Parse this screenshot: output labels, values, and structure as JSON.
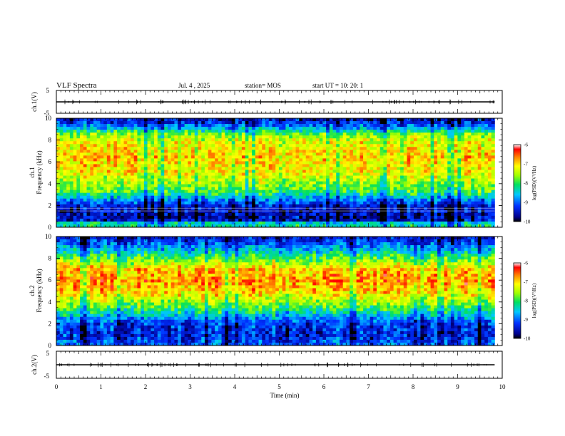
{
  "header": {
    "title": "VLF Spectra",
    "date": "Jul. 4 , 2025",
    "station": "station= MOS",
    "start_ut": "start UT =  10: 20: 1"
  },
  "chart_data": {
    "type": "heatmap",
    "title": "VLF Spectra",
    "xlabel": "Time (min)",
    "xlim": [
      0,
      10
    ],
    "x_ticks": [
      "0",
      "1",
      "2",
      "3",
      "4",
      "5",
      "6",
      "7",
      "8",
      "9",
      "10"
    ],
    "panels": [
      {
        "id": "ch1-voltage",
        "ylabel": "ch.1(V)",
        "ylim": [
          -5,
          5
        ],
        "y_ticks": [
          "5",
          "-5"
        ],
        "trace_level": -0.5,
        "data_end_min": 9.83
      },
      {
        "id": "ch1-spectrogram",
        "ylabel_line1": "ch.1",
        "ylabel_line2": "Frequency (kHz)",
        "ylim": [
          0,
          10
        ],
        "y_ticks": [
          "0",
          "2",
          "4",
          "6",
          "8",
          "10"
        ],
        "data_end_min": 9.83,
        "colorbar": {
          "label": "log(PSD)(V²/Hz)",
          "range": [
            -10,
            -6
          ],
          "ticks": [
            "-6",
            "-7",
            "-8",
            "-9",
            "-10"
          ]
        },
        "profile": [
          {
            "f": 0.0,
            "v": -8.6
          },
          {
            "f": 0.3,
            "v": -8.0
          },
          {
            "f": 0.6,
            "v": -9.5
          },
          {
            "f": 1.0,
            "v": -9.6
          },
          {
            "f": 2.0,
            "v": -9.4
          },
          {
            "f": 2.6,
            "v": -8.8
          },
          {
            "f": 3.2,
            "v": -8.0
          },
          {
            "f": 4.0,
            "v": -7.6
          },
          {
            "f": 5.0,
            "v": -7.2
          },
          {
            "f": 6.5,
            "v": -7.0
          },
          {
            "f": 8.0,
            "v": -7.3
          },
          {
            "f": 8.6,
            "v": -7.8
          },
          {
            "f": 9.2,
            "v": -8.9
          },
          {
            "f": 10.0,
            "v": -9.6
          }
        ]
      },
      {
        "id": "ch2-spectrogram",
        "ylabel_line1": "ch.2",
        "ylabel_line2": "Frequency (kHz)",
        "ylim": [
          0,
          10
        ],
        "y_ticks": [
          "0",
          "2",
          "4",
          "6",
          "8",
          "10"
        ],
        "data_end_min": 9.83,
        "colorbar": {
          "label": "log(PSD)(V²/Hz)",
          "range": [
            -10,
            -6
          ],
          "ticks": [
            "-6",
            "-7",
            "-8",
            "-9",
            "-10"
          ]
        },
        "profile": [
          {
            "f": 0.0,
            "v": -9.0
          },
          {
            "f": 1.0,
            "v": -9.3
          },
          {
            "f": 2.0,
            "v": -9.2
          },
          {
            "f": 3.0,
            "v": -8.3
          },
          {
            "f": 4.0,
            "v": -7.5
          },
          {
            "f": 5.0,
            "v": -6.9
          },
          {
            "f": 6.0,
            "v": -6.7
          },
          {
            "f": 7.0,
            "v": -6.9
          },
          {
            "f": 8.0,
            "v": -7.8
          },
          {
            "f": 8.8,
            "v": -8.6
          },
          {
            "f": 10.0,
            "v": -9.5
          }
        ]
      },
      {
        "id": "ch2-voltage",
        "ylabel": "ch.2(V)",
        "ylim": [
          -5,
          5
        ],
        "y_ticks": [
          "5",
          "-5"
        ],
        "trace_level": -0.5,
        "data_end_min": 9.83
      }
    ]
  }
}
